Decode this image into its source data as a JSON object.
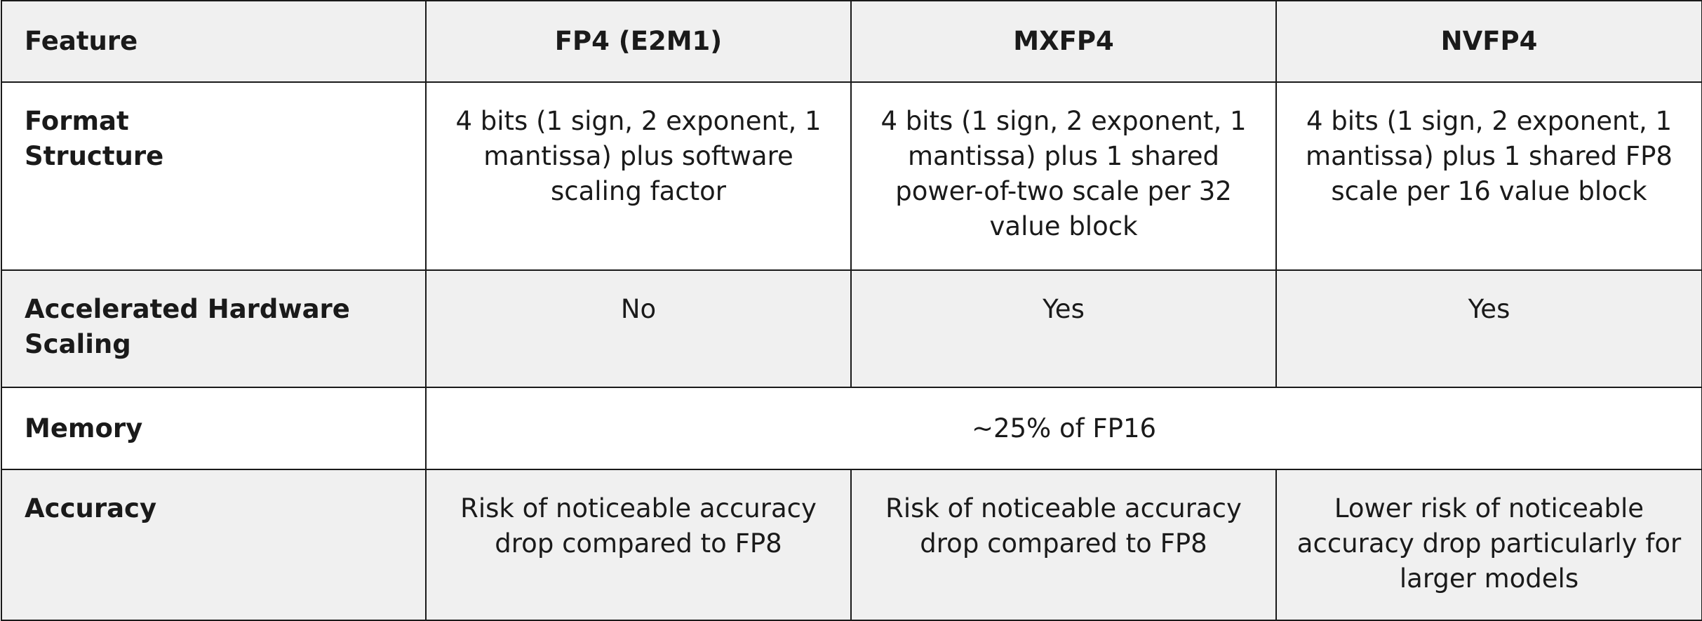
{
  "table": {
    "header": {
      "feature": "Feature",
      "fp4": "FP4 (E2M1)",
      "mxfp4": "MXFP4",
      "nvfp4": "NVFP4"
    },
    "rows": {
      "format_structure": {
        "label": "Format Structure",
        "fp4": "4 bits (1 sign, 2 exponent, 1 mantissa) plus software scaling factor",
        "mxfp4": "4 bits (1 sign, 2 exponent, 1 mantissa) plus 1 shared power-of-two scale per 32 value block",
        "nvfp4": "4 bits (1 sign, 2 exponent, 1 mantissa) plus 1 shared FP8 scale per 16 value block"
      },
      "accelerated_hardware_scaling": {
        "label": "Accelerated Hardware Scaling",
        "fp4": "No",
        "mxfp4": "Yes",
        "nvfp4": "Yes"
      },
      "memory": {
        "label": "Memory",
        "all": "~25% of FP16"
      },
      "accuracy": {
        "label": "Accuracy",
        "fp4": "Risk of noticeable accuracy drop compared to FP8",
        "mxfp4": "Risk of noticeable accuracy drop compared to FP8",
        "nvfp4": "Lower risk of noticeable accuracy drop particularly for larger models"
      }
    }
  }
}
